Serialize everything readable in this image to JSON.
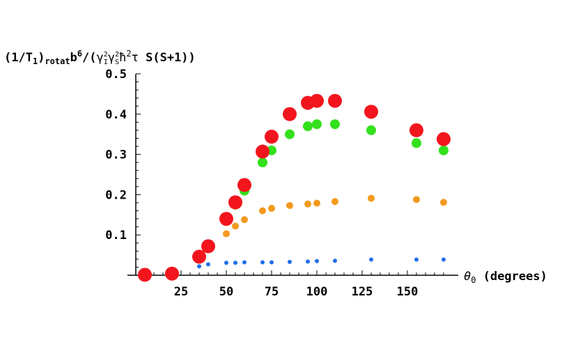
{
  "chart_data": {
    "type": "scatter",
    "ylabel_parts": {
      "a": "(1/T",
      "a_sub": "1",
      "b": ")",
      "b_sub": "rotat",
      "c": "b",
      "c_sup": "6",
      "d": "/(",
      "g1": "γ",
      "g1_sup": "2",
      "g1_sub": "I",
      "g2": "γ",
      "g2_sup": "2",
      "g2_sub": "S",
      "h": "ħ",
      "h_sup": "2",
      "tau": "τ",
      "tail": " S(S+1))"
    },
    "xlabel_parts": {
      "theta": "θ",
      "theta_sub": "0",
      "tail": " (degrees)"
    },
    "x_ticks": [
      25,
      50,
      75,
      100,
      125,
      150
    ],
    "y_ticks": [
      0.1,
      0.2,
      0.3,
      0.4,
      0.5
    ],
    "y_tick_labels": [
      "0.1",
      "0.2",
      "0.3",
      "0.4",
      "0.5"
    ],
    "x_tick_labels": [
      "25",
      "50",
      "75",
      "100",
      "125",
      "150"
    ],
    "xlim": [
      0,
      175
    ],
    "ylim": [
      0,
      0.5
    ],
    "series": [
      {
        "color": "#1f6fe8",
        "marker_size": "small",
        "points": [
          [
            35,
            0.022
          ],
          [
            40,
            0.027
          ],
          [
            50,
            0.031
          ],
          [
            55,
            0.031
          ],
          [
            60,
            0.032
          ],
          [
            70,
            0.032
          ],
          [
            75,
            0.032
          ],
          [
            85,
            0.033
          ],
          [
            95,
            0.034
          ],
          [
            100,
            0.035
          ],
          [
            110,
            0.036
          ],
          [
            130,
            0.039
          ],
          [
            155,
            0.039
          ],
          [
            170,
            0.039
          ]
        ]
      },
      {
        "color": "#f39a1e",
        "marker_size": "medium",
        "points": [
          [
            50,
            0.103
          ],
          [
            55,
            0.122
          ],
          [
            60,
            0.138
          ],
          [
            70,
            0.16
          ],
          [
            75,
            0.166
          ],
          [
            85,
            0.173
          ],
          [
            95,
            0.177
          ],
          [
            100,
            0.179
          ],
          [
            110,
            0.183
          ],
          [
            130,
            0.191
          ],
          [
            155,
            0.188
          ],
          [
            170,
            0.181
          ]
        ]
      },
      {
        "color": "#33e01c",
        "marker_size": "large",
        "points": [
          [
            55,
            0.175
          ],
          [
            60,
            0.21
          ],
          [
            70,
            0.28
          ],
          [
            75,
            0.31
          ],
          [
            85,
            0.35
          ],
          [
            95,
            0.37
          ],
          [
            100,
            0.375
          ],
          [
            110,
            0.375
          ],
          [
            130,
            0.36
          ],
          [
            155,
            0.328
          ],
          [
            170,
            0.31
          ]
        ]
      },
      {
        "color": "#f3151d",
        "marker_size": "xlarge",
        "points": [
          [
            5,
            0.001
          ],
          [
            20,
            0.004
          ],
          [
            35,
            0.046
          ],
          [
            40,
            0.072
          ],
          [
            50,
            0.14
          ],
          [
            55,
            0.181
          ],
          [
            60,
            0.224
          ],
          [
            70,
            0.307
          ],
          [
            75,
            0.344
          ],
          [
            85,
            0.4
          ],
          [
            95,
            0.428
          ],
          [
            100,
            0.433
          ],
          [
            110,
            0.433
          ],
          [
            130,
            0.406
          ],
          [
            155,
            0.36
          ],
          [
            170,
            0.338
          ]
        ]
      }
    ]
  }
}
